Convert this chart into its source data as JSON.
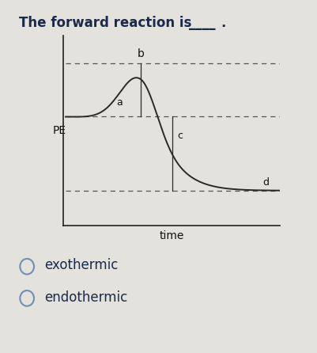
{
  "title_parts": [
    "The forward reaction is ",
    "____",
    "."
  ],
  "xlabel": "time",
  "ylabel": "PE",
  "background_color": "#e8e6e0",
  "curve_color": "#2a2a2a",
  "dashed_color": "#555555",
  "label_a": "a",
  "label_b": "b",
  "label_c": "c",
  "label_d": "d",
  "level_a": 0.62,
  "level_b": 0.92,
  "level_d": 0.2,
  "peak_t": 0.35,
  "c_t": 0.5,
  "answer_option1": "exothermic",
  "answer_option2": "endothermic",
  "fig_bg": "#e4e2dc",
  "text_color": "#1a2a4a",
  "radio_color": "#7090b0"
}
